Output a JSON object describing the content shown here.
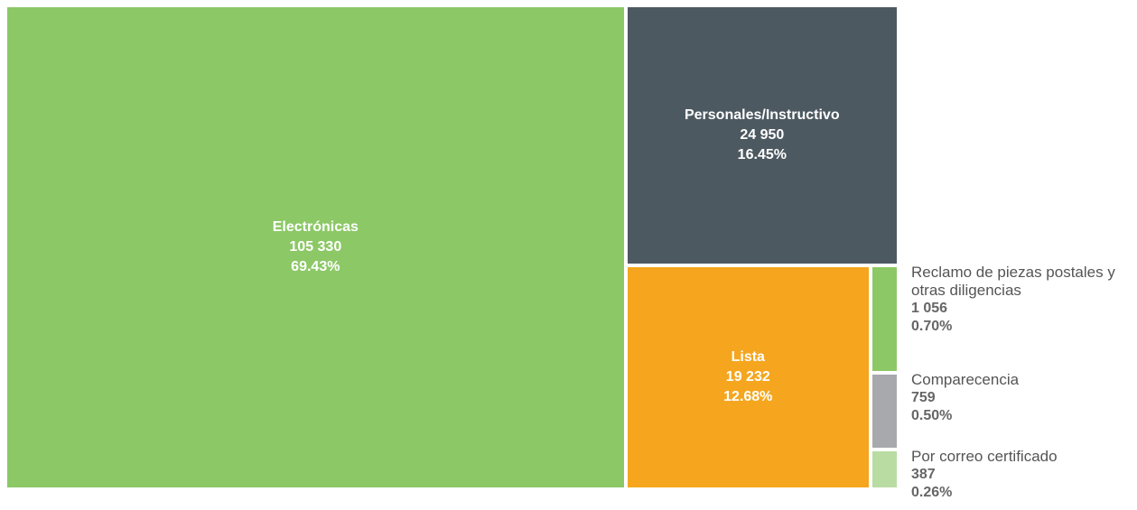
{
  "chart_data": {
    "type": "treemap",
    "categories": [
      "Electrónicas",
      "Personales/Instructivo",
      "Lista",
      "Reclamo de piezas postales y otras diligencias",
      "Comparecencia",
      "Por correo certificado"
    ],
    "values": [
      105330,
      24950,
      19232,
      1056,
      759,
      387
    ],
    "value_labels": [
      "105 330",
      "24 950",
      "19 232",
      "1 056",
      "759",
      "387"
    ],
    "percents": [
      69.43,
      16.45,
      12.68,
      0.7,
      0.5,
      0.26
    ],
    "percent_labels": [
      "69.43%",
      "16.45%",
      "12.68%",
      "0.70%",
      "0.50%",
      "0.26%"
    ],
    "colors": [
      "#8cc866",
      "#4d5961",
      "#f5a61e",
      "#8cc866",
      "#a7a9ad",
      "#b9dca3"
    ]
  }
}
